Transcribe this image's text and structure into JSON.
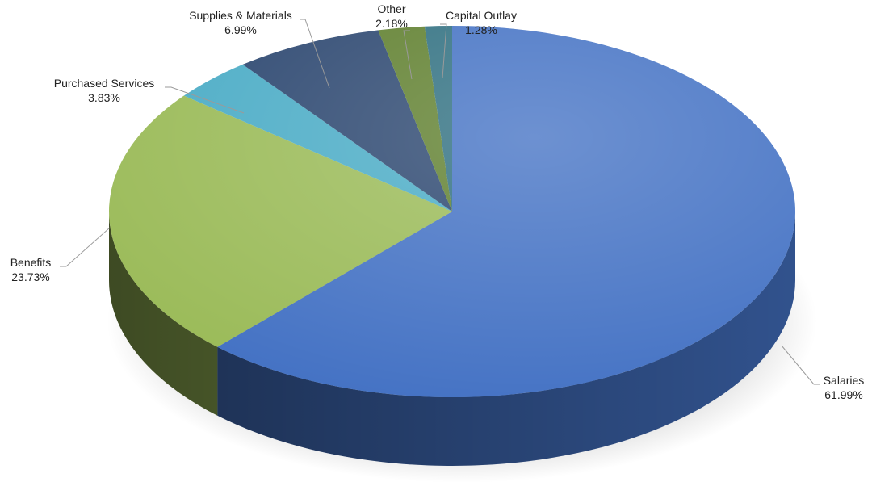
{
  "chart_data": {
    "type": "pie",
    "title": "",
    "style": "3d",
    "slices": [
      {
        "label": "Salaries",
        "value_label": "61.99%",
        "value": 61.99,
        "color": "#4472c4"
      },
      {
        "label": "Benefits",
        "value_label": "23.73%",
        "value": 23.73,
        "color": "#9bbb59"
      },
      {
        "label": "Purchased Services",
        "value_label": "3.83%",
        "value": 3.83,
        "color": "#4bacc6"
      },
      {
        "label": "Supplies & Materials",
        "value_label": "6.99%",
        "value": 6.99,
        "color": "#2c4770"
      },
      {
        "label": "Other",
        "value_label": "2.18%",
        "value": 2.18,
        "color": "#5f7f2e"
      },
      {
        "label": "Capital Outlay",
        "value_label": "1.28%",
        "value": 1.28,
        "color": "#2f6f80"
      }
    ]
  }
}
